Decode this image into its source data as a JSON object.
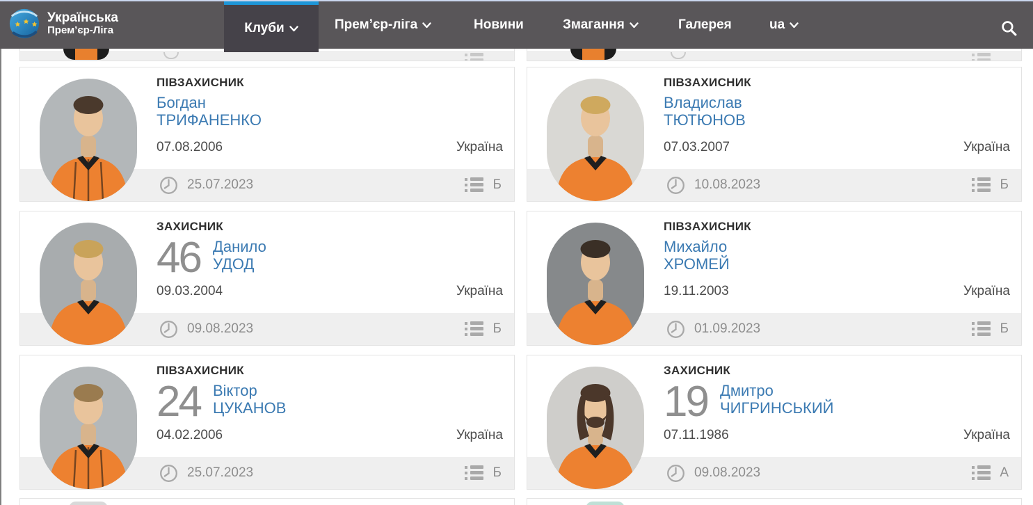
{
  "page": {
    "top_strip_color": "#c9d6ee",
    "accent_blue": "#1e96d8",
    "name_link_blue": "#3b7ab2"
  },
  "navbar": {
    "logo": {
      "icon": "upl-ball-logo",
      "line1": "Українська",
      "line2": "Прем’єр-Ліга"
    },
    "items": [
      {
        "label": "Клуби",
        "dropdown": true,
        "active": true
      },
      {
        "label": "Прем’єр-ліга",
        "dropdown": true,
        "active": false
      },
      {
        "label": "Новини",
        "dropdown": false,
        "active": false
      },
      {
        "label": "Змагання",
        "dropdown": true,
        "active": false
      },
      {
        "label": "Галерея",
        "dropdown": false,
        "active": false
      },
      {
        "label": "ua",
        "dropdown": true,
        "active": false
      }
    ],
    "search_icon": "search-icon"
  },
  "cards": {
    "players": [
      {
        "position": "ПІВЗАХИСНИК",
        "number": "",
        "first_name": "Богдан",
        "last_name": "ТРИФАНЕНКО",
        "birth_date": "07.08.2006",
        "country": "Україна",
        "registration_date": "25.07.2023",
        "list_letter": "Б",
        "avatar": {
          "bg": "#b3b7b9",
          "hair": "#4a392c",
          "skin": "#e9c49c",
          "jersey": "#ed8130",
          "collar": "#1f1f1f",
          "style": "short",
          "stripes": true
        }
      },
      {
        "position": "ПІВЗАХИСНИК",
        "number": "",
        "first_name": "Владислав",
        "last_name": "ТЮТЮНОВ",
        "birth_date": "07.03.2007",
        "country": "Україна",
        "registration_date": "10.08.2023",
        "list_letter": "Б",
        "avatar": {
          "bg": "#d9d8d4",
          "hair": "#cfa95e",
          "skin": "#e9c49c",
          "jersey": "#ed8130",
          "collar": "#1f1f1f",
          "style": "short",
          "stripes": false
        }
      },
      {
        "position": "ЗАХИСНИК",
        "number": "46",
        "first_name": "Данило",
        "last_name": "УДОД",
        "birth_date": "09.03.2004",
        "country": "Україна",
        "registration_date": "09.08.2023",
        "list_letter": "Б",
        "avatar": {
          "bg": "#a8acae",
          "hair": "#c9a35a",
          "skin": "#e9c49c",
          "jersey": "#ed8130",
          "collar": "#1f1f1f",
          "style": "short",
          "stripes": false
        }
      },
      {
        "position": "ПІВЗАХИСНИК",
        "number": "",
        "first_name": "Михайло",
        "last_name": "ХРОМЕЙ",
        "birth_date": "19.11.2003",
        "country": "Україна",
        "registration_date": "01.09.2023",
        "list_letter": "Б",
        "avatar": {
          "bg": "#86898b",
          "hair": "#3a2f26",
          "skin": "#e9c49c",
          "jersey": "#ed8130",
          "collar": "#1f1f1f",
          "style": "short",
          "stripes": false
        }
      },
      {
        "position": "ПІВЗАХИСНИК",
        "number": "24",
        "first_name": "Віктор",
        "last_name": "ЦУКАНОВ",
        "birth_date": "04.02.2006",
        "country": "Україна",
        "registration_date": "25.07.2023",
        "list_letter": "Б",
        "avatar": {
          "bg": "#b4b8ba",
          "hair": "#9a7b4f",
          "skin": "#e9c49c",
          "jersey": "#ed8130",
          "collar": "#1f1f1f",
          "style": "short",
          "stripes": true
        }
      },
      {
        "position": "ЗАХИСНИК",
        "number": "19",
        "first_name": "Дмитро",
        "last_name": "ЧИГРИНСЬКИЙ",
        "birth_date": "07.11.1986",
        "country": "Україна",
        "registration_date": "09.08.2023",
        "list_letter": "А",
        "avatar": {
          "bg": "#cfcecb",
          "hair": "#4b372a",
          "skin": "#e9c49c",
          "jersey": "#ed8130",
          "collar": "#1f1f1f",
          "style": "long",
          "stripes": false
        }
      }
    ]
  }
}
